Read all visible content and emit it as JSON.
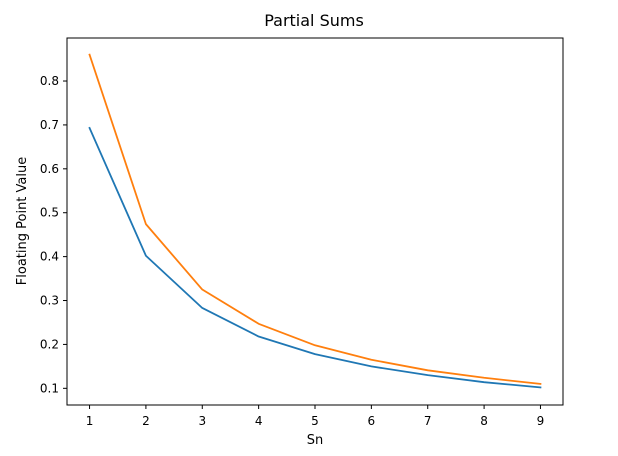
{
  "chart_data": {
    "type": "line",
    "title": "Partial Sums",
    "xlabel": "Sn",
    "ylabel": "Floating Point Value",
    "x": [
      1,
      2,
      3,
      4,
      5,
      6,
      7,
      8,
      9
    ],
    "xticks": [
      "1",
      "2",
      "3",
      "4",
      "5",
      "6",
      "7",
      "8",
      "9"
    ],
    "yticks": [
      "0.1",
      "0.2",
      "0.3",
      "0.4",
      "0.5",
      "0.6",
      "0.7",
      "0.8"
    ],
    "xlim": [
      0.6,
      9.4
    ],
    "ylim": [
      0.062,
      0.898
    ],
    "grid": false,
    "legend": "none",
    "series": [
      {
        "color": "#1f77b4",
        "values": [
          0.693,
          0.402,
          0.283,
          0.218,
          0.178,
          0.15,
          0.13,
          0.114,
          0.102
        ]
      },
      {
        "color": "#ff7f0e",
        "values": [
          0.86,
          0.474,
          0.325,
          0.247,
          0.198,
          0.165,
          0.141,
          0.124,
          0.11
        ]
      }
    ]
  }
}
